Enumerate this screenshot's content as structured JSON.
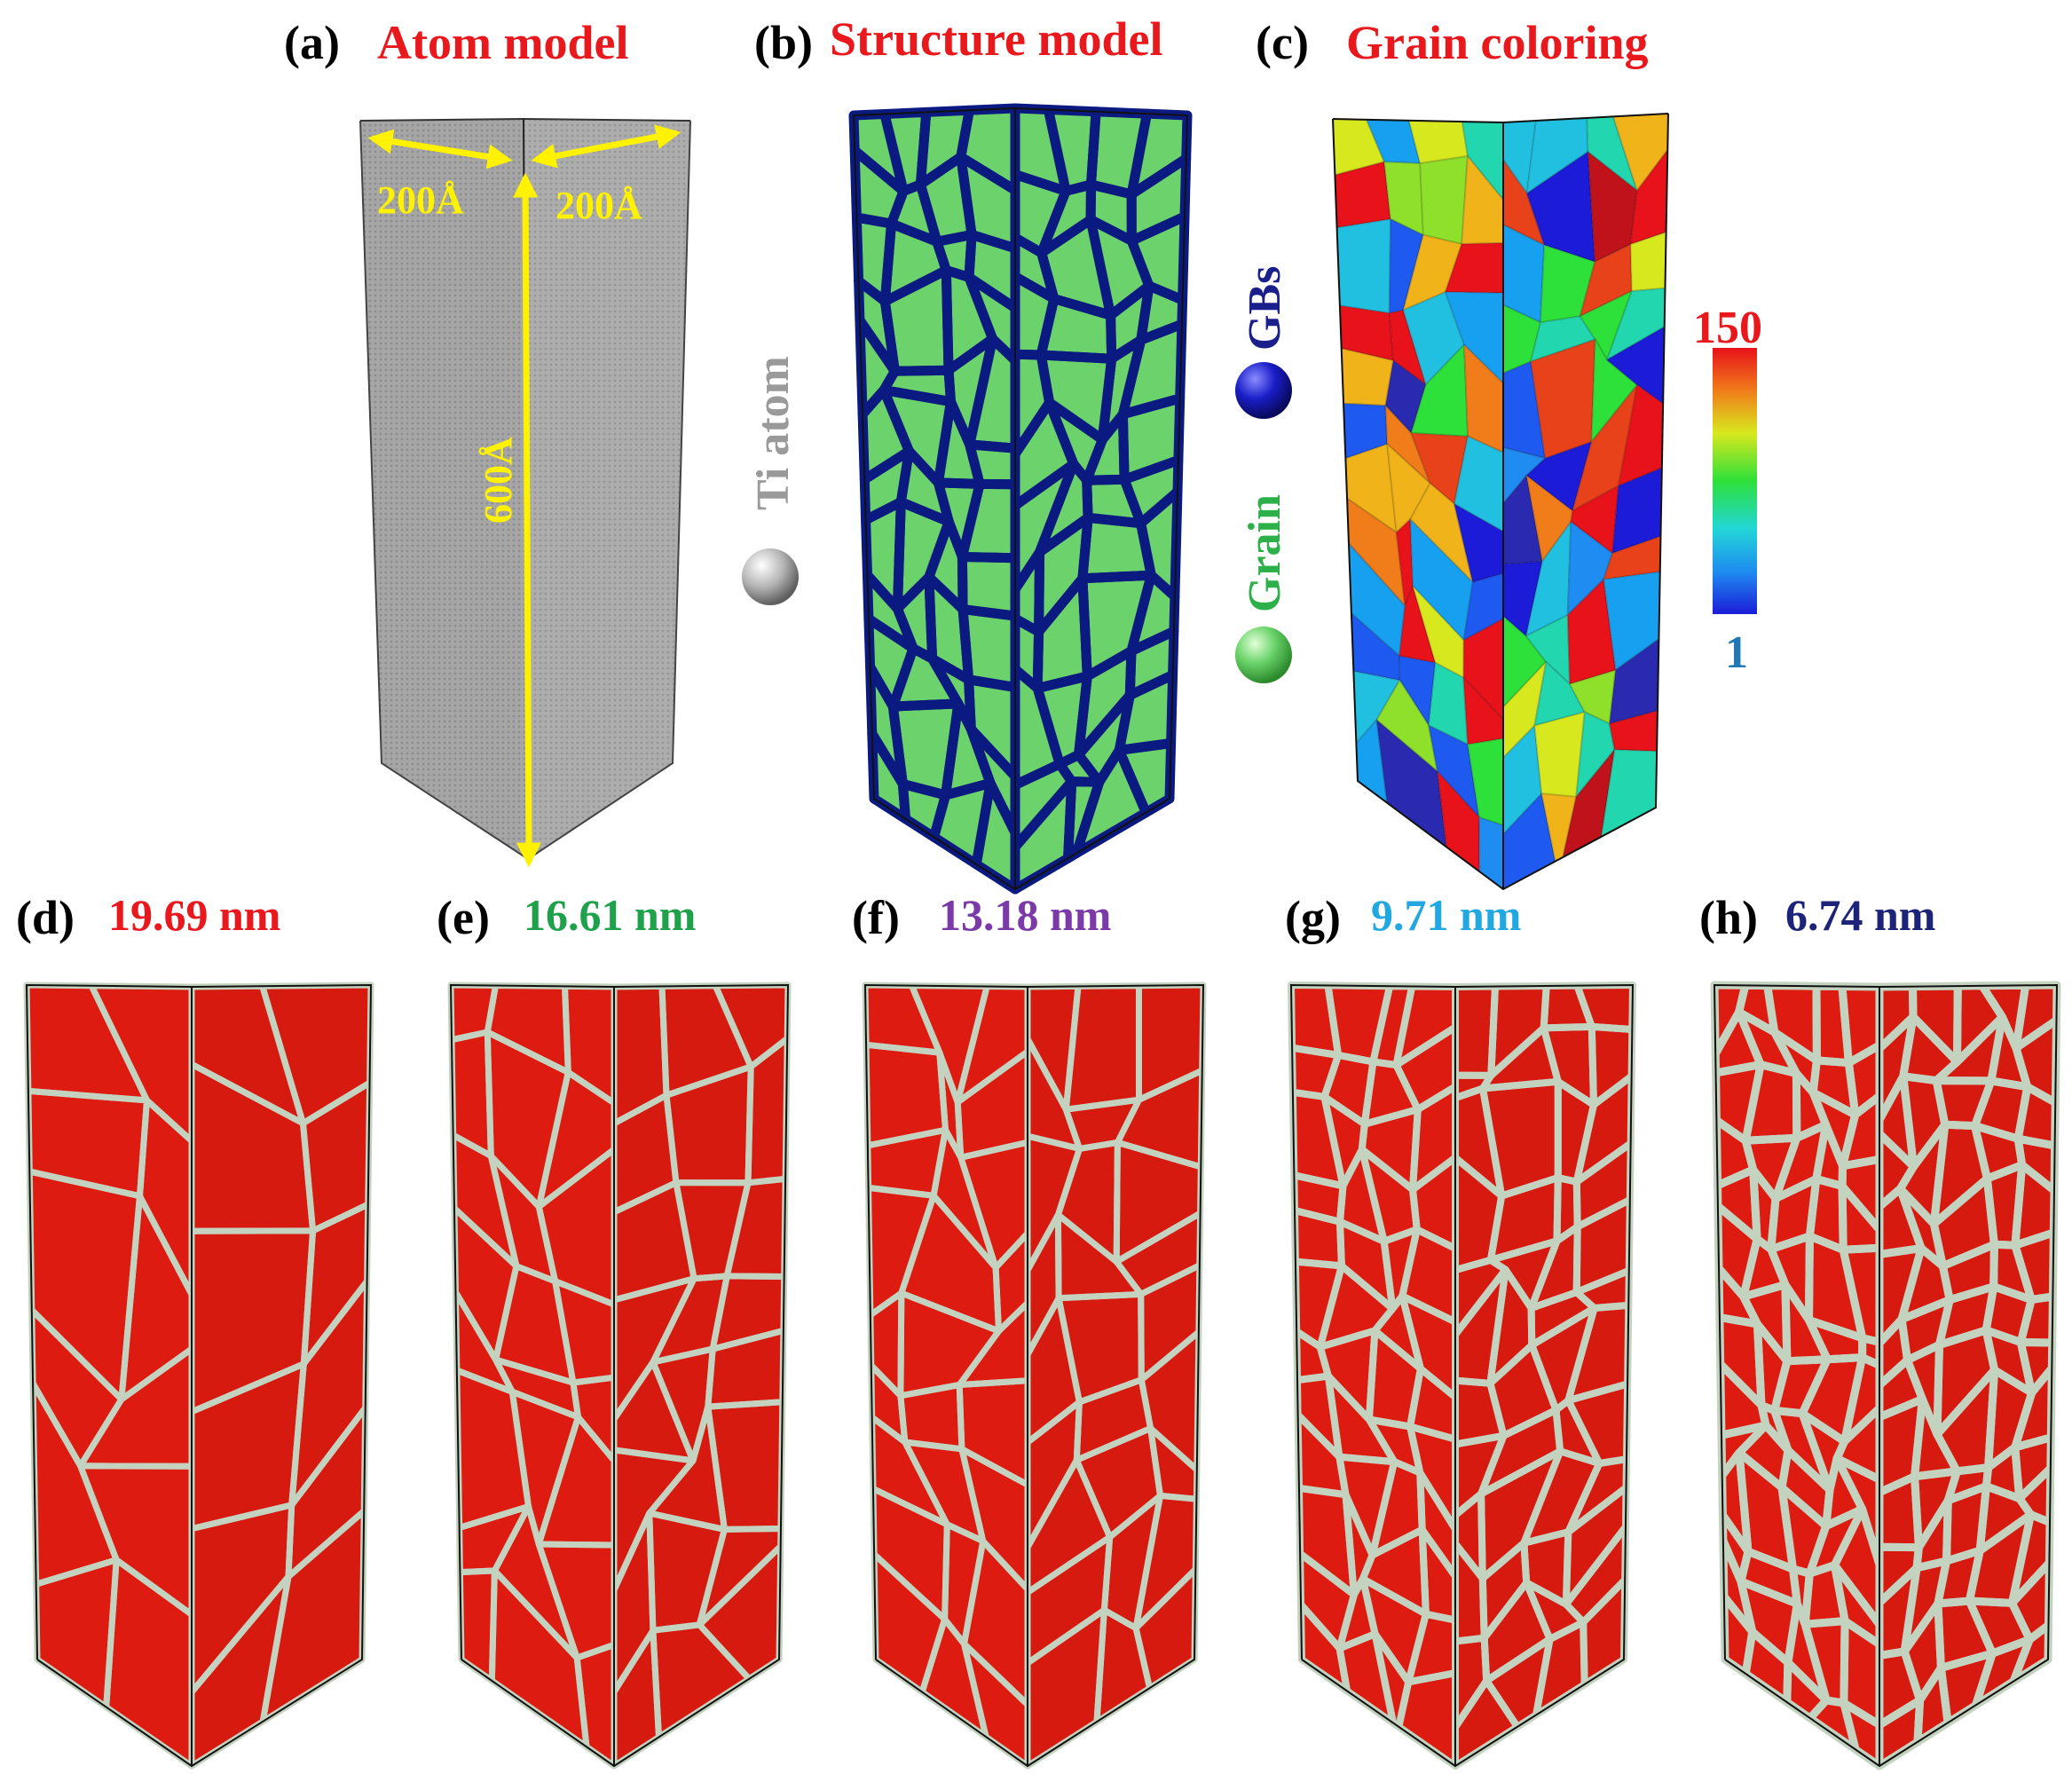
{
  "panels": {
    "a": {
      "letter": "(a)",
      "title": "Atom model",
      "title_color": "#e8181d"
    },
    "b": {
      "letter": "(b)",
      "title": "Structure model",
      "title_color": "#e8181d"
    },
    "c": {
      "letter": "(c)",
      "title": "Grain coloring",
      "title_color": "#e8181d"
    },
    "d": {
      "letter": "(d)",
      "size": "19.69 nm",
      "size_color": "#e8181d"
    },
    "e": {
      "letter": "(e)",
      "size": "16.61 nm",
      "size_color": "#1fa04a"
    },
    "f": {
      "letter": "(f)",
      "size": "13.18 nm",
      "size_color": "#7b3aa8"
    },
    "g": {
      "letter": "(g)",
      "size": "9.71 nm",
      "size_color": "#22a8e0"
    },
    "h": {
      "letter": "(h)",
      "size": "6.74 nm",
      "size_color": "#1c2378"
    }
  },
  "dimensions": {
    "width": "200Å",
    "depth": "200Å",
    "height": "600Å",
    "arrow_color": "#fff200"
  },
  "legend": {
    "ti_atom": "Ti atom",
    "gbs": "GBs",
    "grain": "Grain",
    "ti_color": "#9a9a9a",
    "gbs_color": "#1a1f8c",
    "grain_color": "#2db04a"
  },
  "colorbar": {
    "max": "150",
    "min": "1",
    "max_color": "#e8181d",
    "min_color": "#1f78b4"
  },
  "colors": {
    "atom_gray": "#a8a8a8",
    "grain_green": "#6cd36c",
    "gb_navy": "#0b1a80",
    "grain_red": "#dd1b10",
    "gb_gray": "#c4d2c0"
  }
}
